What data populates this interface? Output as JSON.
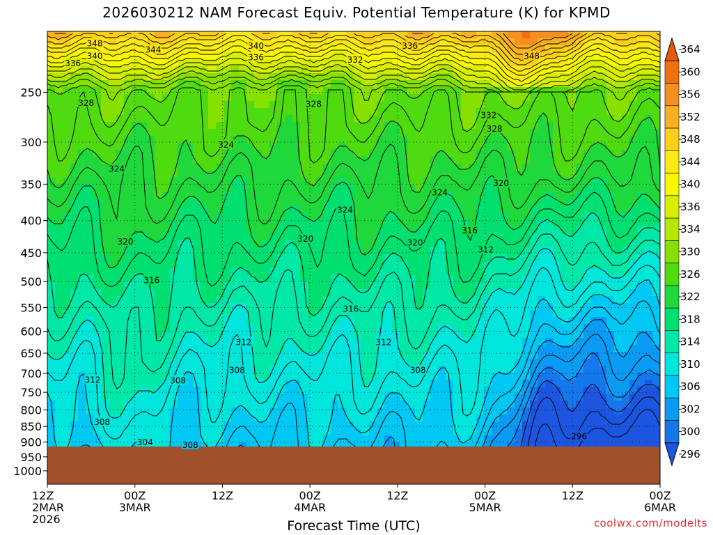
{
  "title": "2026030212 NAM Forecast Equiv. Potential Temperature (K) for KPMD",
  "credit": "coolwx.com/modelts",
  "colors": {
    "terrain": "#a0502c",
    "background": "#ffffff"
  },
  "chart_data": {
    "type": "heatmap",
    "title": "2026030212 NAM Forecast Equiv. Potential Temperature (K) for KPMD",
    "xlabel": "Forecast Time (UTC)",
    "ylabel": "",
    "x_ticks": [
      {
        "hours": 0,
        "lines": [
          "12Z",
          "2MAR",
          "2026"
        ]
      },
      {
        "hours": 12,
        "lines": [
          "00Z",
          "3MAR"
        ]
      },
      {
        "hours": 24,
        "lines": [
          "12Z"
        ]
      },
      {
        "hours": 36,
        "lines": [
          "00Z",
          "4MAR"
        ]
      },
      {
        "hours": 48,
        "lines": [
          "12Z"
        ]
      },
      {
        "hours": 60,
        "lines": [
          "00Z",
          "5MAR"
        ]
      },
      {
        "hours": 72,
        "lines": [
          "12Z"
        ]
      },
      {
        "hours": 84,
        "lines": [
          "00Z",
          "6MAR"
        ]
      }
    ],
    "xlim": [
      0,
      84
    ],
    "y_ticks": [
      "250",
      "300",
      "350",
      "400",
      "450",
      "500",
      "550",
      "600",
      "650",
      "700",
      "750",
      "800",
      "850",
      "900",
      "950",
      "1000"
    ],
    "ylim": [
      1050,
      200
    ],
    "y_scale": "log",
    "surface_pressure": 915,
    "colorbar": {
      "labels": [
        "364",
        "360",
        "356",
        "352",
        "348",
        "344",
        "340",
        "336",
        "334",
        "330",
        "326",
        "322",
        "318",
        "314",
        "310",
        "306",
        "302",
        "300",
        "296"
      ],
      "colors": [
        "#e8580a",
        "#f07010",
        "#f59020",
        "#f8b020",
        "#fcd018",
        "#fce814",
        "#f8f800",
        "#d8f000",
        "#b4e800",
        "#86e000",
        "#50da10",
        "#1ed83c",
        "#00e070",
        "#00e8a8",
        "#00e6dc",
        "#00c8f4",
        "#0a9cf4",
        "#1478ec",
        "#1c56e0"
      ]
    },
    "contour_labels": [
      {
        "text": "348",
        "t": 6.5,
        "p": 209
      },
      {
        "text": "344",
        "t": 14.5,
        "p": 214
      },
      {
        "text": "340",
        "t": 6.5,
        "p": 219
      },
      {
        "text": "336",
        "t": 3.5,
        "p": 225
      },
      {
        "text": "340",
        "t": 28.6,
        "p": 211
      },
      {
        "text": "336",
        "t": 28.6,
        "p": 220
      },
      {
        "text": "336",
        "t": 49.7,
        "p": 211
      },
      {
        "text": "332",
        "t": 42.2,
        "p": 222
      },
      {
        "text": "348",
        "t": 66.4,
        "p": 219
      },
      {
        "text": "328",
        "t": 5.3,
        "p": 260
      },
      {
        "text": "328",
        "t": 36.5,
        "p": 261
      },
      {
        "text": "332",
        "t": 60.5,
        "p": 272
      },
      {
        "text": "328",
        "t": 61.3,
        "p": 286
      },
      {
        "text": "324",
        "t": 24.5,
        "p": 303
      },
      {
        "text": "324",
        "t": 9.5,
        "p": 331
      },
      {
        "text": "324",
        "t": 40.8,
        "p": 385
      },
      {
        "text": "324",
        "t": 53.8,
        "p": 361
      },
      {
        "text": "320",
        "t": 62.2,
        "p": 349
      },
      {
        "text": "316",
        "t": 57.9,
        "p": 415
      },
      {
        "text": "320",
        "t": 10.7,
        "p": 432
      },
      {
        "text": "320",
        "t": 35.4,
        "p": 428
      },
      {
        "text": "320",
        "t": 50.4,
        "p": 434
      },
      {
        "text": "312",
        "t": 60.1,
        "p": 445
      },
      {
        "text": "316",
        "t": 14.3,
        "p": 498
      },
      {
        "text": "316",
        "t": 41.6,
        "p": 553
      },
      {
        "text": "312",
        "t": 26.9,
        "p": 625
      },
      {
        "text": "312",
        "t": 46.1,
        "p": 625
      },
      {
        "text": "308",
        "t": 26.0,
        "p": 692
      },
      {
        "text": "308",
        "t": 50.8,
        "p": 692
      },
      {
        "text": "312",
        "t": 6.2,
        "p": 717
      },
      {
        "text": "308",
        "t": 17.9,
        "p": 719
      },
      {
        "text": "308",
        "t": 7.5,
        "p": 837
      },
      {
        "text": "304",
        "t": 13.4,
        "p": 901
      },
      {
        "text": "308",
        "t": 19.6,
        "p": 910
      },
      {
        "text": "296",
        "t": 72.9,
        "p": 882
      }
    ]
  }
}
